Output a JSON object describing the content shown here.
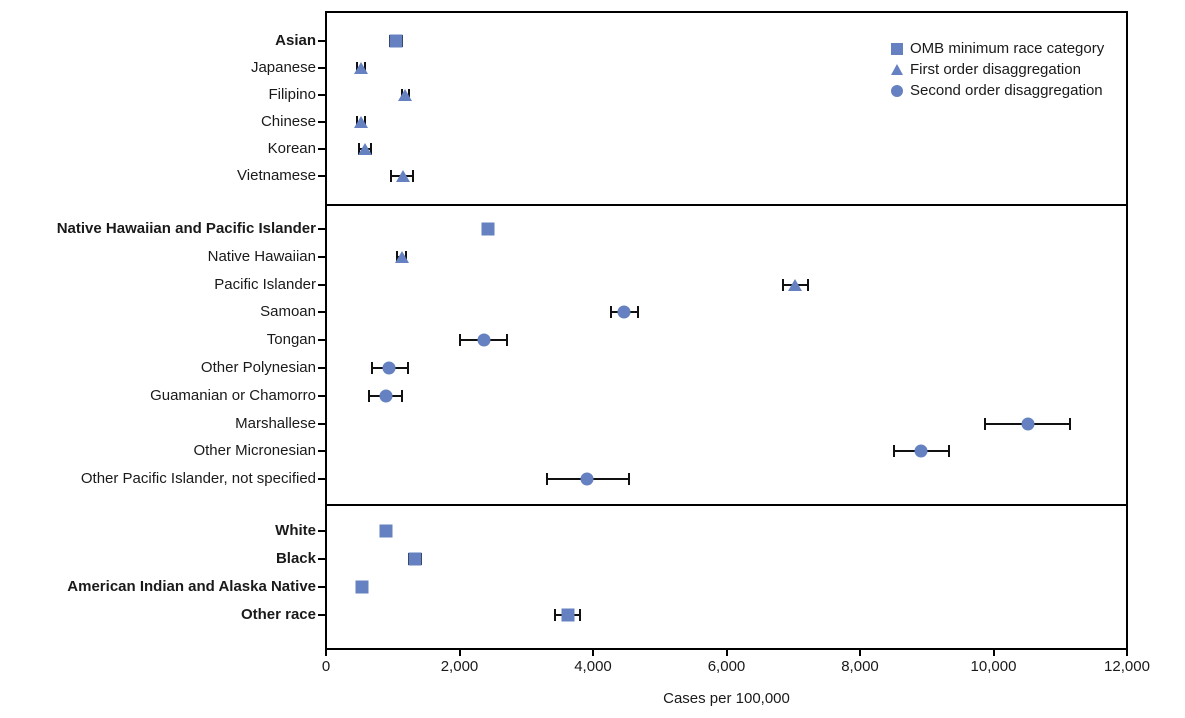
{
  "chart_data": {
    "type": "scatter",
    "subtype": "horizontal-dot-plot-with-error-bars",
    "xlabel": "Cases per 100,000",
    "xlim": [
      0,
      12000
    ],
    "grid": false,
    "legend_position": "top-right-inside",
    "marker_color": "#6581c1",
    "error_bar_color": "#111111",
    "xticks": [
      {
        "value": 0,
        "label": "0"
      },
      {
        "value": 2000,
        "label": "2,000"
      },
      {
        "value": 4000,
        "label": "4,000"
      },
      {
        "value": 6000,
        "label": "6,000"
      },
      {
        "value": 8000,
        "label": "8,000"
      },
      {
        "value": 10000,
        "label": "10,000"
      },
      {
        "value": 12000,
        "label": "12,000"
      }
    ],
    "legend": [
      {
        "marker": "square",
        "label": "OMB minimum race category"
      },
      {
        "marker": "triangle",
        "label": "First order disaggregation"
      },
      {
        "marker": "circle",
        "label": "Second order disaggregation"
      }
    ],
    "panels": [
      {
        "rows": [
          {
            "label": "Asian",
            "bold": true,
            "marker": "square",
            "value": 1050,
            "ci_low": 960,
            "ci_high": 1140
          },
          {
            "label": "Japanese",
            "bold": false,
            "marker": "triangle",
            "value": 525,
            "ci_low": 470,
            "ci_high": 590
          },
          {
            "label": "Filipino",
            "bold": false,
            "marker": "triangle",
            "value": 1190,
            "ci_low": 1135,
            "ci_high": 1250
          },
          {
            "label": "Chinese",
            "bold": false,
            "marker": "triangle",
            "value": 525,
            "ci_low": 470,
            "ci_high": 590
          },
          {
            "label": "Korean",
            "bold": false,
            "marker": "triangle",
            "value": 585,
            "ci_low": 495,
            "ci_high": 675
          },
          {
            "label": "Vietnamese",
            "bold": false,
            "marker": "triangle",
            "value": 1160,
            "ci_low": 970,
            "ci_high": 1305
          }
        ]
      },
      {
        "rows": [
          {
            "label": "Native Hawaiian and Pacific Islander",
            "bold": true,
            "marker": "square",
            "value": 2430,
            "ci_low": 2360,
            "ci_high": 2495
          },
          {
            "label": "Native Hawaiian",
            "bold": false,
            "marker": "triangle",
            "value": 1140,
            "ci_low": 1070,
            "ci_high": 1200
          },
          {
            "label": "Pacific Islander",
            "bold": false,
            "marker": "triangle",
            "value": 7020,
            "ci_low": 6845,
            "ci_high": 7220
          },
          {
            "label": "Samoan",
            "bold": false,
            "marker": "circle",
            "value": 4465,
            "ci_low": 4265,
            "ci_high": 4675
          },
          {
            "label": "Tongan",
            "bold": false,
            "marker": "circle",
            "value": 2360,
            "ci_low": 2005,
            "ci_high": 2715
          },
          {
            "label": "Other Polynesian",
            "bold": false,
            "marker": "circle",
            "value": 950,
            "ci_low": 690,
            "ci_high": 1230
          },
          {
            "label": "Guamanian or Chamorro",
            "bold": false,
            "marker": "circle",
            "value": 900,
            "ci_low": 650,
            "ci_high": 1140
          },
          {
            "label": "Marshallese",
            "bold": false,
            "marker": "circle",
            "value": 10510,
            "ci_low": 9870,
            "ci_high": 11150
          },
          {
            "label": "Other Micronesian",
            "bold": false,
            "marker": "circle",
            "value": 8920,
            "ci_low": 8510,
            "ci_high": 9340
          },
          {
            "label": "Other Pacific Islander, not specified",
            "bold": false,
            "marker": "circle",
            "value": 3915,
            "ci_low": 3310,
            "ci_high": 4540
          }
        ]
      },
      {
        "rows": [
          {
            "label": "White",
            "bold": true,
            "marker": "square",
            "value": 900,
            "ci_low": 850,
            "ci_high": 945
          },
          {
            "label": "Black",
            "bold": true,
            "marker": "square",
            "value": 1340,
            "ci_low": 1250,
            "ci_high": 1425
          },
          {
            "label": "American Indian and Alaska Native",
            "bold": true,
            "marker": "square",
            "value": 545,
            "ci_low": 480,
            "ci_high": 620
          },
          {
            "label": "Other race",
            "bold": true,
            "marker": "square",
            "value": 3620,
            "ci_low": 3430,
            "ci_high": 3800
          }
        ]
      }
    ]
  }
}
